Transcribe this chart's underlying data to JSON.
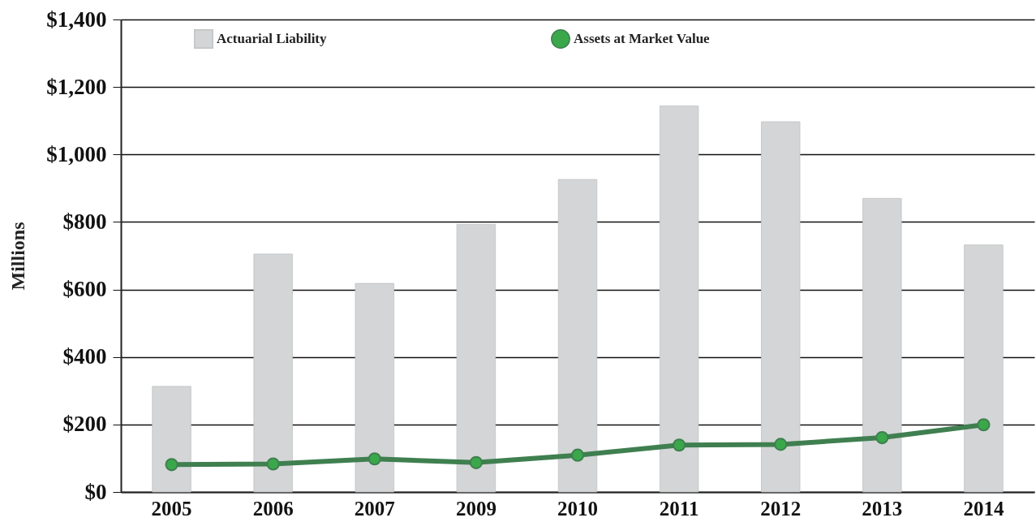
{
  "chart_data": {
    "type": "bar",
    "ylabel": "Millions",
    "categories": [
      "2005",
      "2006",
      "2007",
      "2009",
      "2010",
      "2011",
      "2012",
      "2013",
      "2014"
    ],
    "series": [
      {
        "name": "Actuarial Liability",
        "color": "#d3d5d6",
        "values": [
          313,
          705,
          618,
          793,
          926,
          1144,
          1097,
          870,
          732
        ]
      },
      {
        "name": "Assets at Market Value",
        "type": "line",
        "color": "#3f7f50",
        "marker": "circle",
        "values": [
          81,
          83,
          98,
          87,
          109,
          139,
          141,
          161,
          199
        ]
      }
    ],
    "ylim": [
      0,
      1400
    ],
    "yticks": [
      {
        "value": 0,
        "label": "$0"
      },
      {
        "value": 200,
        "label": "$200"
      },
      {
        "value": 400,
        "label": "$400"
      },
      {
        "value": 600,
        "label": "$600"
      },
      {
        "value": 800,
        "label": "$800"
      },
      {
        "value": 1000,
        "label": "$1,000"
      },
      {
        "value": 1200,
        "label": "$1,200"
      },
      {
        "value": 1400,
        "label": "$1,400"
      }
    ],
    "grid": "y",
    "legend": "top"
  }
}
